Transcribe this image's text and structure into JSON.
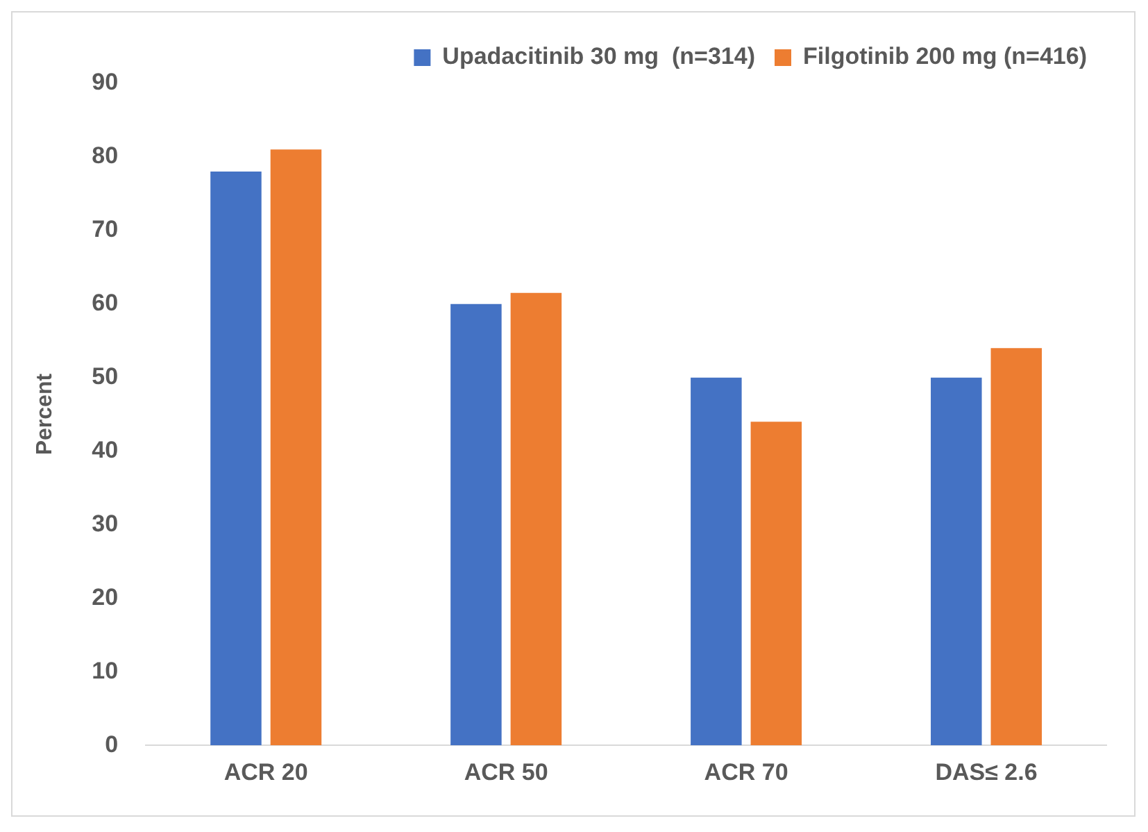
{
  "chart_data": {
    "type": "bar",
    "ylabel": "Percent",
    "categories": [
      "ACR 20",
      "ACR 50",
      "ACR 70",
      "DAS≤ 2.6"
    ],
    "series": [
      {
        "name": "Upadacitinib 30 mg  (n=314)",
        "color": "#4472c4",
        "values": [
          78,
          60,
          50,
          50
        ]
      },
      {
        "name": "Filgotinib 200 mg (n=416)",
        "color": "#ed7d31",
        "values": [
          81,
          61.5,
          44,
          54
        ]
      }
    ],
    "ylim": [
      0,
      90
    ],
    "yticks": [
      0,
      10,
      20,
      30,
      40,
      50,
      60,
      70,
      80,
      90
    ],
    "grid": false,
    "legend": "top right"
  }
}
